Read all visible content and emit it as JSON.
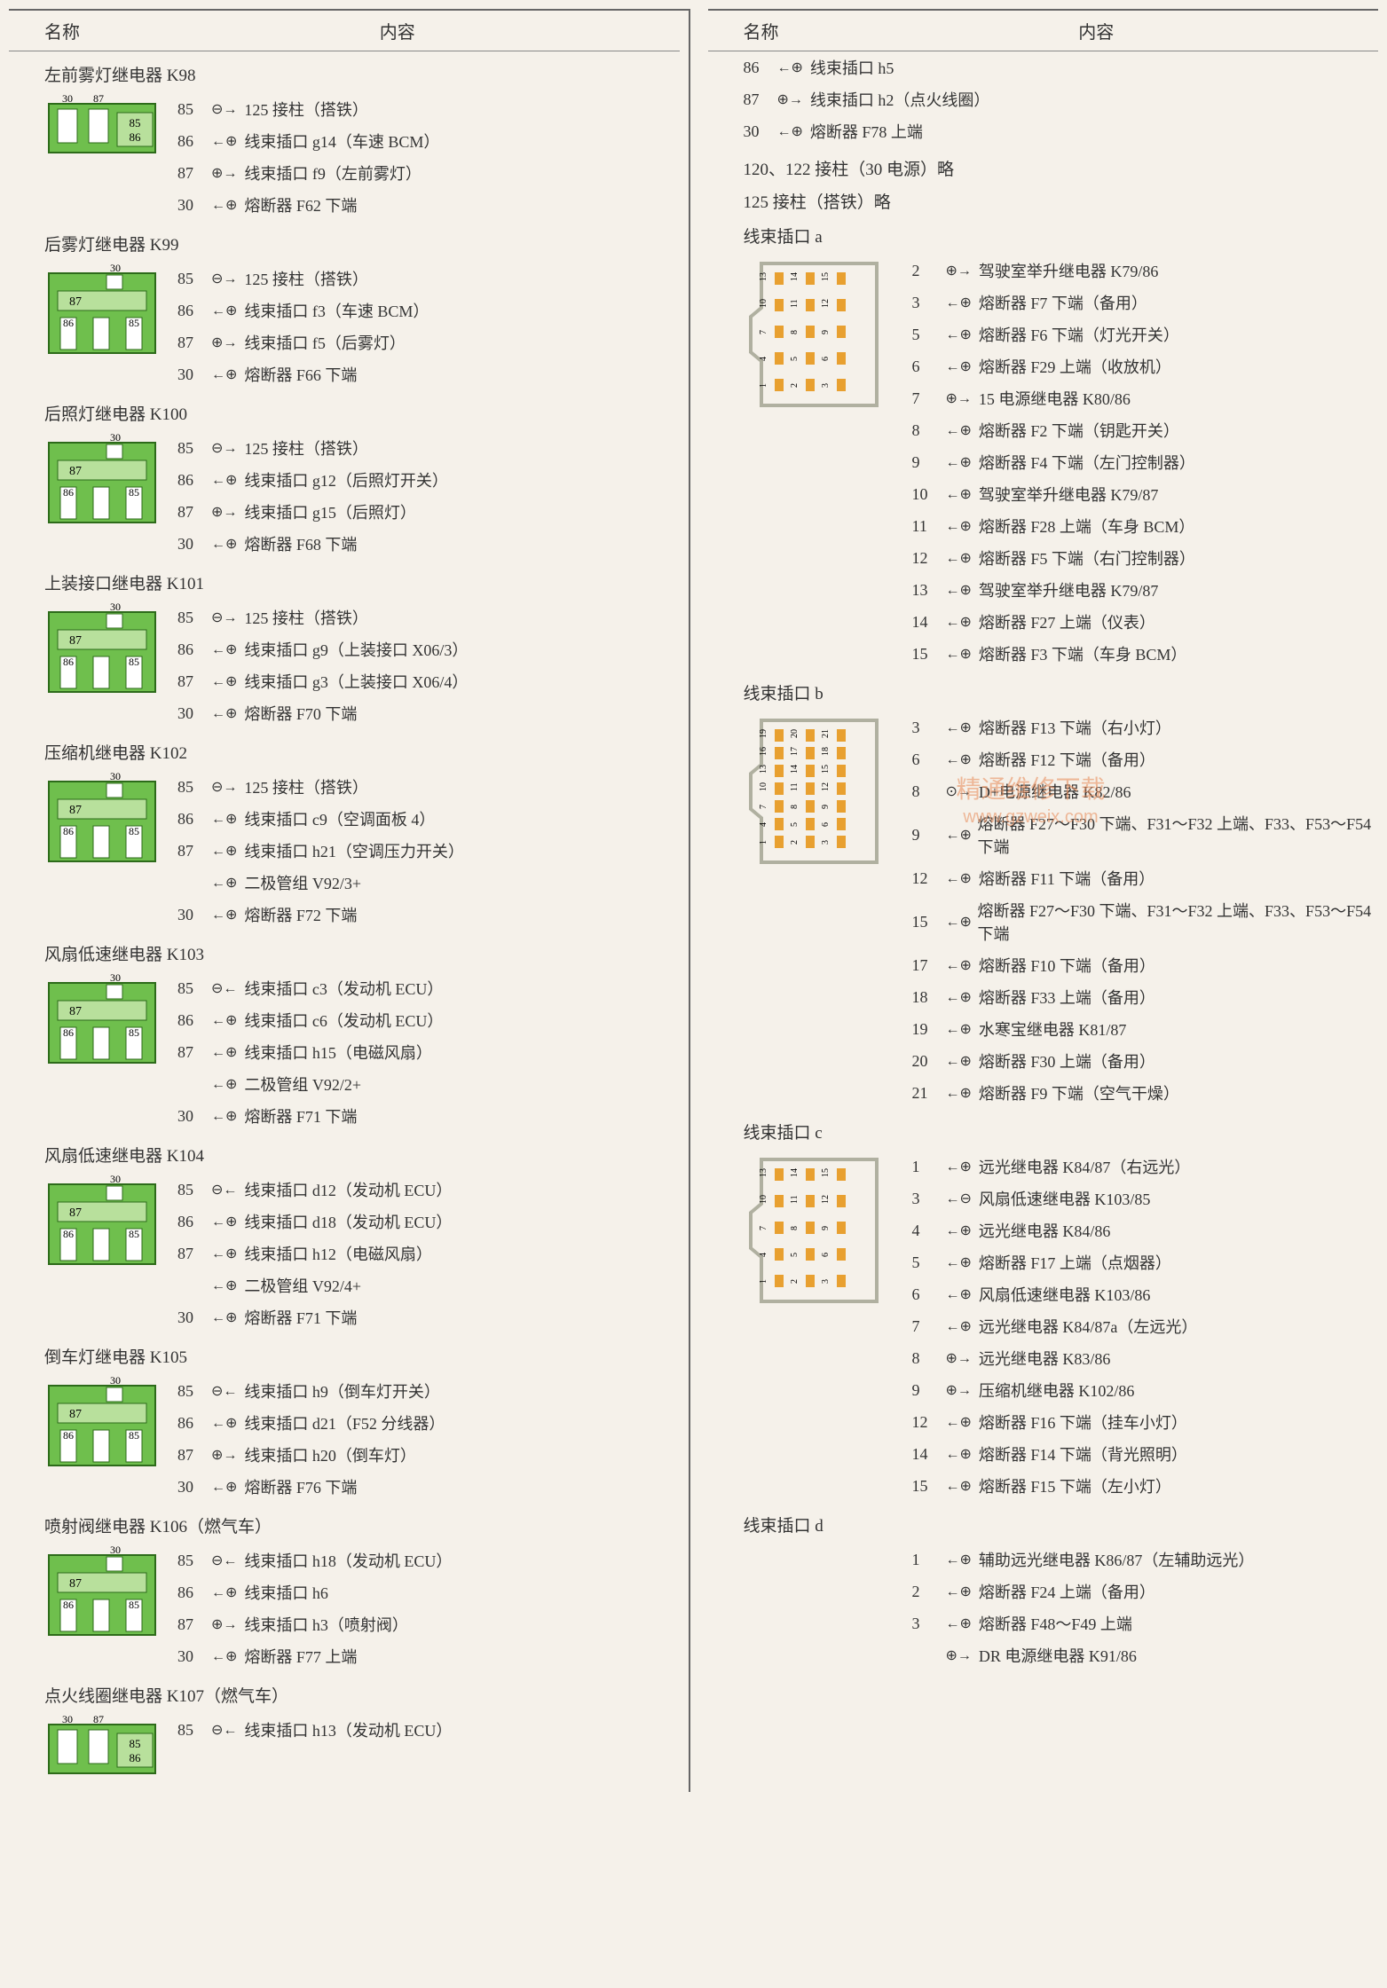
{
  "headers": {
    "name": "名称",
    "content": "内容"
  },
  "watermark": {
    "main": "精通维修下载",
    "url": "www.gzweix.com"
  },
  "relay_colors": {
    "body": "#6fbf4d",
    "strip": "#b8e09c",
    "outline": "#2d6b1a",
    "pin_fill": "#ffffff"
  },
  "connector_colors": {
    "outline": "#b0b0a0",
    "fill": "#f5f1ea",
    "pin": "#e8a030"
  },
  "left_sections": [
    {
      "title": "左前雾灯继电器 K98",
      "type": "relay_a",
      "pins": [
        {
          "n": "85",
          "s": "⊖→",
          "t": "125 接柱（搭铁）"
        },
        {
          "n": "86",
          "s": "←⊕",
          "t": "线束插口 g14（车速 BCM）"
        },
        {
          "n": "87",
          "s": "⊕→",
          "t": "线束插口 f9（左前雾灯）"
        },
        {
          "n": "30",
          "s": "←⊕",
          "t": "熔断器 F62 下端"
        }
      ]
    },
    {
      "title": "后雾灯继电器 K99",
      "type": "relay_b",
      "pins": [
        {
          "n": "85",
          "s": "⊖→",
          "t": "125 接柱（搭铁）"
        },
        {
          "n": "86",
          "s": "←⊕",
          "t": "线束插口 f3（车速 BCM）"
        },
        {
          "n": "87",
          "s": "⊕→",
          "t": "线束插口 f5（后雾灯）"
        },
        {
          "n": "30",
          "s": "←⊕",
          "t": "熔断器 F66 下端"
        }
      ]
    },
    {
      "title": "后照灯继电器 K100",
      "type": "relay_b",
      "pins": [
        {
          "n": "85",
          "s": "⊖→",
          "t": "125 接柱（搭铁）"
        },
        {
          "n": "86",
          "s": "←⊕",
          "t": "线束插口 g12（后照灯开关）"
        },
        {
          "n": "87",
          "s": "⊕→",
          "t": "线束插口 g15（后照灯）"
        },
        {
          "n": "30",
          "s": "←⊕",
          "t": "熔断器 F68 下端"
        }
      ]
    },
    {
      "title": "上装接口继电器 K101",
      "type": "relay_b",
      "pins": [
        {
          "n": "85",
          "s": "⊖→",
          "t": "125 接柱（搭铁）"
        },
        {
          "n": "86",
          "s": "←⊕",
          "t": "线束插口 g9（上装接口 X06/3）"
        },
        {
          "n": "87",
          "s": "←⊕",
          "t": "线束插口 g3（上装接口 X06/4）"
        },
        {
          "n": "30",
          "s": "←⊕",
          "t": "熔断器 F70 下端"
        }
      ]
    },
    {
      "title": "压缩机继电器 K102",
      "type": "relay_b",
      "pins": [
        {
          "n": "85",
          "s": "⊖→",
          "t": "125 接柱（搭铁）"
        },
        {
          "n": "86",
          "s": "←⊕",
          "t": "线束插口 c9（空调面板 4）"
        },
        {
          "n": "87",
          "s": "←⊕",
          "t": "线束插口 h21（空调压力开关）"
        },
        {
          "n": "",
          "s": "←⊕",
          "t": "二极管组 V92/3+"
        },
        {
          "n": "30",
          "s": "←⊕",
          "t": "熔断器 F72 下端"
        }
      ]
    },
    {
      "title": "风扇低速继电器 K103",
      "type": "relay_b",
      "pins": [
        {
          "n": "85",
          "s": "⊖←",
          "t": "线束插口 c3（发动机 ECU）"
        },
        {
          "n": "86",
          "s": "←⊕",
          "t": "线束插口 c6（发动机 ECU）"
        },
        {
          "n": "87",
          "s": "←⊕",
          "t": "线束插口 h15（电磁风扇）"
        },
        {
          "n": "",
          "s": "←⊕",
          "t": "二极管组 V92/2+"
        },
        {
          "n": "30",
          "s": "←⊕",
          "t": "熔断器 F71 下端"
        }
      ]
    },
    {
      "title": "风扇低速继电器 K104",
      "type": "relay_b",
      "pins": [
        {
          "n": "85",
          "s": "⊖←",
          "t": "线束插口 d12（发动机 ECU）"
        },
        {
          "n": "86",
          "s": "←⊕",
          "t": "线束插口 d18（发动机 ECU）"
        },
        {
          "n": "87",
          "s": "←⊕",
          "t": "线束插口 h12（电磁风扇）"
        },
        {
          "n": "",
          "s": "←⊕",
          "t": "二极管组 V92/4+"
        },
        {
          "n": "30",
          "s": "←⊕",
          "t": "熔断器 F71 下端"
        }
      ]
    },
    {
      "title": "倒车灯继电器 K105",
      "type": "relay_b",
      "pins": [
        {
          "n": "85",
          "s": "⊖←",
          "t": "线束插口 h9（倒车灯开关）"
        },
        {
          "n": "86",
          "s": "←⊕",
          "t": "线束插口 d21（F52 分线器）"
        },
        {
          "n": "87",
          "s": "⊕→",
          "t": "线束插口 h20（倒车灯）"
        },
        {
          "n": "30",
          "s": "←⊕",
          "t": "熔断器 F76 下端"
        }
      ]
    },
    {
      "title": "喷射阀继电器 K106（燃气车）",
      "type": "relay_b",
      "pins": [
        {
          "n": "85",
          "s": "⊖←",
          "t": "线束插口 h18（发动机 ECU）"
        },
        {
          "n": "86",
          "s": "←⊕",
          "t": "线束插口 h6"
        },
        {
          "n": "87",
          "s": "⊕→",
          "t": "线束插口 h3（喷射阀）"
        },
        {
          "n": "30",
          "s": "←⊕",
          "t": "熔断器 F77 上端"
        }
      ]
    },
    {
      "title": "点火线圈继电器 K107（燃气车）",
      "type": "relay_a",
      "pins": [
        {
          "n": "85",
          "s": "⊖←",
          "t": "线束插口 h13（发动机 ECU）"
        }
      ]
    }
  ],
  "right_top_pins": [
    {
      "n": "86",
      "s": "←⊕",
      "t": "线束插口 h5"
    },
    {
      "n": "87",
      "s": "⊕→",
      "t": "线束插口 h2（点火线圈）"
    },
    {
      "n": "30",
      "s": "←⊕",
      "t": "熔断器 F78 上端"
    }
  ],
  "right_notes": [
    "120、122 接柱（30 电源）略",
    "125 接柱（搭铁）略"
  ],
  "right_sections": [
    {
      "title": "线束插口 a",
      "type": "connector_15",
      "pins": [
        {
          "n": "2",
          "s": "⊕→",
          "t": "驾驶室举升继电器 K79/86"
        },
        {
          "n": "3",
          "s": "←⊕",
          "t": "熔断器 F7 下端（备用）"
        },
        {
          "n": "5",
          "s": "←⊕",
          "t": "熔断器 F6 下端（灯光开关）"
        },
        {
          "n": "6",
          "s": "←⊕",
          "t": "熔断器 F29 上端（收放机）"
        },
        {
          "n": "7",
          "s": "⊕→",
          "t": "15 电源继电器 K80/86"
        },
        {
          "n": "8",
          "s": "←⊕",
          "t": "熔断器 F2 下端（钥匙开关）"
        },
        {
          "n": "9",
          "s": "←⊕",
          "t": "熔断器 F4 下端（左门控制器）"
        },
        {
          "n": "10",
          "s": "←⊕",
          "t": "驾驶室举升继电器 K79/87"
        },
        {
          "n": "11",
          "s": "←⊕",
          "t": "熔断器 F28 上端（车身 BCM）"
        },
        {
          "n": "12",
          "s": "←⊕",
          "t": "熔断器 F5 下端（右门控制器）"
        },
        {
          "n": "13",
          "s": "←⊕",
          "t": "驾驶室举升继电器 K79/87"
        },
        {
          "n": "14",
          "s": "←⊕",
          "t": "熔断器 F27 上端（仪表）"
        },
        {
          "n": "15",
          "s": "←⊕",
          "t": "熔断器 F3 下端（车身 BCM）"
        }
      ]
    },
    {
      "title": "线束插口 b",
      "type": "connector_21",
      "pins": [
        {
          "n": "3",
          "s": "←⊕",
          "t": "熔断器 F13 下端（右小灯）"
        },
        {
          "n": "6",
          "s": "←⊕",
          "t": "熔断器 F12 下端（备用）"
        },
        {
          "n": "8",
          "s": "⊙→",
          "t": "D+电源继电器 K82/86"
        },
        {
          "n": "9",
          "s": "←⊕",
          "t": "熔断器 F27～F30 下端、F31～F32 上端、F33、F53～F54 下端"
        },
        {
          "n": "12",
          "s": "←⊕",
          "t": "熔断器 F11 下端（备用）"
        },
        {
          "n": "15",
          "s": "←⊕",
          "t": "熔断器 F27～F30 下端、F31～F32 上端、F33、F53～F54 下端"
        },
        {
          "n": "17",
          "s": "←⊕",
          "t": "熔断器 F10 下端（备用）"
        },
        {
          "n": "18",
          "s": "←⊕",
          "t": "熔断器 F33 上端（备用）"
        },
        {
          "n": "19",
          "s": "←⊕",
          "t": "水寒宝继电器 K81/87"
        },
        {
          "n": "20",
          "s": "←⊕",
          "t": "熔断器 F30 上端（备用）"
        },
        {
          "n": "21",
          "s": "←⊕",
          "t": "熔断器 F9 下端（空气干燥）"
        }
      ]
    },
    {
      "title": "线束插口 c",
      "type": "connector_15",
      "pins": [
        {
          "n": "1",
          "s": "←⊕",
          "t": "远光继电器 K84/87（右远光）"
        },
        {
          "n": "3",
          "s": "←⊖",
          "t": "风扇低速继电器 K103/85"
        },
        {
          "n": "4",
          "s": "←⊕",
          "t": "远光继电器 K84/86"
        },
        {
          "n": "5",
          "s": "←⊕",
          "t": "熔断器 F17 上端（点烟器）"
        },
        {
          "n": "6",
          "s": "←⊕",
          "t": "风扇低速继电器 K103/86"
        },
        {
          "n": "7",
          "s": "←⊕",
          "t": "远光继电器 K84/87a（左远光）"
        },
        {
          "n": "8",
          "s": "⊕→",
          "t": "远光继电器 K83/86"
        },
        {
          "n": "9",
          "s": "⊕→",
          "t": "压缩机继电器 K102/86"
        },
        {
          "n": "12",
          "s": "←⊕",
          "t": "熔断器 F16 下端（挂车小灯）"
        },
        {
          "n": "14",
          "s": "←⊕",
          "t": "熔断器 F14 下端（背光照明）"
        },
        {
          "n": "15",
          "s": "←⊕",
          "t": "熔断器 F15 下端（左小灯）"
        }
      ]
    },
    {
      "title": "线束插口 d",
      "type": "none",
      "pins": [
        {
          "n": "1",
          "s": "←⊕",
          "t": "辅助远光继电器 K86/87（左辅助远光）"
        },
        {
          "n": "2",
          "s": "←⊕",
          "t": "熔断器 F24 上端（备用）"
        },
        {
          "n": "3",
          "s": "←⊕",
          "t": "熔断器 F48～F49 上端"
        },
        {
          "n": "",
          "s": "⊕→",
          "t": "DR 电源继电器 K91/86"
        }
      ]
    }
  ]
}
